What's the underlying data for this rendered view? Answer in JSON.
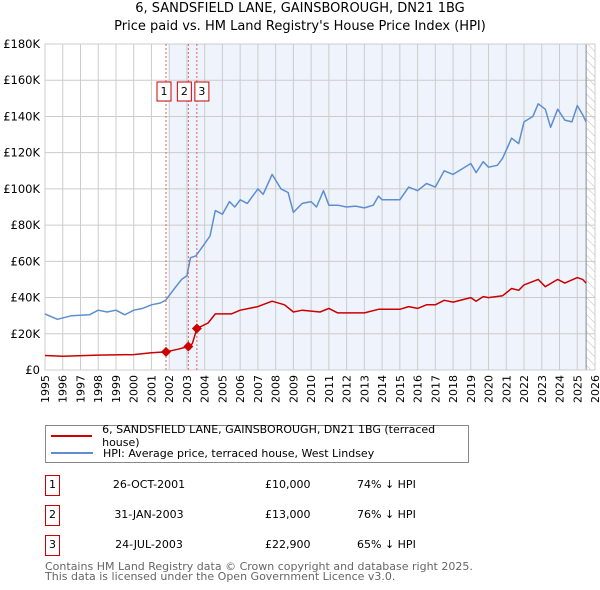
{
  "title": "6, SANDSFIELD LANE, GAINSBOROUGH, DN21 1BG",
  "subtitle": "Price paid vs. HM Land Registry's House Price Index (HPI)",
  "colors": {
    "property": "#cc0000",
    "hpi": "#5b8fd0",
    "shade": "#eef3fc"
  },
  "chart_data": {
    "type": "line",
    "title": "6, SANDSFIELD LANE, GAINSBOROUGH, DN21 1BG",
    "xlim": [
      1995,
      2026
    ],
    "ylim": [
      0,
      180000
    ],
    "y_ticks": [
      0,
      20000,
      40000,
      60000,
      80000,
      100000,
      120000,
      140000,
      160000,
      180000
    ],
    "y_tick_labels": [
      "£0",
      "£20K",
      "£40K",
      "£60K",
      "£80K",
      "£100K",
      "£120K",
      "£140K",
      "£160K",
      "£180K"
    ],
    "x_ticks": [
      1995,
      1996,
      1997,
      1998,
      1999,
      2000,
      2001,
      2002,
      2003,
      2004,
      2005,
      2006,
      2007,
      2008,
      2009,
      2010,
      2011,
      2012,
      2013,
      2014,
      2015,
      2016,
      2017,
      2018,
      2019,
      2020,
      2021,
      2022,
      2023,
      2024,
      2025,
      2026
    ],
    "grid": true,
    "legend_placement": "below",
    "series": [
      {
        "name": "HPI: Average price, terraced house, West Lindsey",
        "color": "#5b8fd0",
        "x": [
          1995,
          1995.7,
          1996.5,
          1997.5,
          1998,
          1998.5,
          1999,
          1999.5,
          2000,
          2000.5,
          2001,
          2001.5,
          2001.8,
          2002.3,
          2002.7,
          2003,
          2003.2,
          2003.5,
          2003.8,
          2004.3,
          2004.6,
          2005,
          2005.4,
          2005.7,
          2006,
          2006.4,
          2007,
          2007.3,
          2007.8,
          2008.3,
          2008.7,
          2009,
          2009.5,
          2010,
          2010.3,
          2010.7,
          2011,
          2011.5,
          2012,
          2012.5,
          2013,
          2013.5,
          2013.8,
          2014,
          2015,
          2015.5,
          2016,
          2016.5,
          2017,
          2017.5,
          2018,
          2018.5,
          2019,
          2019.3,
          2019.7,
          2020,
          2020.5,
          2020.8,
          2021.3,
          2021.7,
          2022,
          2022.5,
          2022.8,
          2023.2,
          2023.5,
          2023.9,
          2024.3,
          2024.7,
          2025,
          2025.3,
          2025.5
        ],
        "y": [
          31000,
          28000,
          30000,
          30500,
          33000,
          32000,
          33000,
          30500,
          33000,
          34000,
          36000,
          37000,
          38500,
          45000,
          50000,
          52000,
          62000,
          63000,
          67000,
          74000,
          88000,
          86000,
          93000,
          90000,
          94000,
          92000,
          100000,
          97000,
          108000,
          100000,
          98000,
          87000,
          92000,
          93000,
          90000,
          99000,
          91000,
          91000,
          90000,
          90500,
          89500,
          91000,
          96000,
          94000,
          94000,
          101000,
          99000,
          103000,
          101000,
          110000,
          108000,
          111000,
          114000,
          109000,
          115000,
          112000,
          113000,
          117000,
          128000,
          125000,
          137000,
          140000,
          147000,
          144000,
          134000,
          144000,
          138000,
          137000,
          146000,
          141000,
          137000
        ]
      },
      {
        "name": "6, SANDSFIELD LANE, GAINSBOROUGH, DN21 1BG (terraced house)",
        "color": "#cc0000",
        "x": [
          1995,
          1996,
          1998,
          2000,
          2001,
          2001.82,
          2002.5,
          2003.08,
          2003.3,
          2003.56,
          2004.2,
          2004.6,
          2005.5,
          2006,
          2007,
          2007.8,
          2008.5,
          2009,
          2009.5,
          2010.5,
          2011,
          2011.5,
          2013,
          2013.8,
          2015,
          2015.5,
          2016,
          2016.5,
          2017,
          2017.5,
          2018,
          2019,
          2019.3,
          2019.7,
          2020,
          2020.8,
          2021.3,
          2021.7,
          2022,
          2022.8,
          2023.2,
          2023.9,
          2024.3,
          2025,
          2025.3,
          2025.5
        ],
        "y": [
          8000,
          7600,
          8200,
          8500,
          9500,
          10000,
          11500,
          13000,
          14500,
          22900,
          26000,
          31000,
          31000,
          33000,
          35000,
          38000,
          36000,
          32000,
          33000,
          32000,
          34000,
          31500,
          31500,
          33500,
          33500,
          35000,
          34000,
          36000,
          36000,
          38500,
          37500,
          40000,
          38000,
          40500,
          40000,
          41000,
          45000,
          44000,
          47000,
          50000,
          46000,
          50000,
          48000,
          51000,
          50000,
          48000
        ]
      }
    ],
    "sales": [
      {
        "label": "1",
        "x": 2001.82,
        "y": 10000
      },
      {
        "label": "2",
        "x": 2003.08,
        "y": 13000
      },
      {
        "label": "3",
        "x": 2003.56,
        "y": 22900
      }
    ],
    "shaded_from": 2002.0,
    "forecast_from": 2025.5
  },
  "legend": {
    "property": "6, SANDSFIELD LANE, GAINSBOROUGH, DN21 1BG (terraced house)",
    "hpi": "HPI: Average price, terraced house, West Lindsey"
  },
  "transactions": [
    {
      "num": "1",
      "date": "26-OCT-2001",
      "price": "£10,000",
      "hpi": "74% ↓ HPI"
    },
    {
      "num": "2",
      "date": "31-JAN-2003",
      "price": "£13,000",
      "hpi": "76% ↓ HPI"
    },
    {
      "num": "3",
      "date": "24-JUL-2003",
      "price": "£22,900",
      "hpi": "65% ↓ HPI"
    }
  ],
  "footer": {
    "line1": "Contains HM Land Registry data © Crown copyright and database right 2025.",
    "line2": "This data is licensed under the Open Government Licence v3.0."
  }
}
